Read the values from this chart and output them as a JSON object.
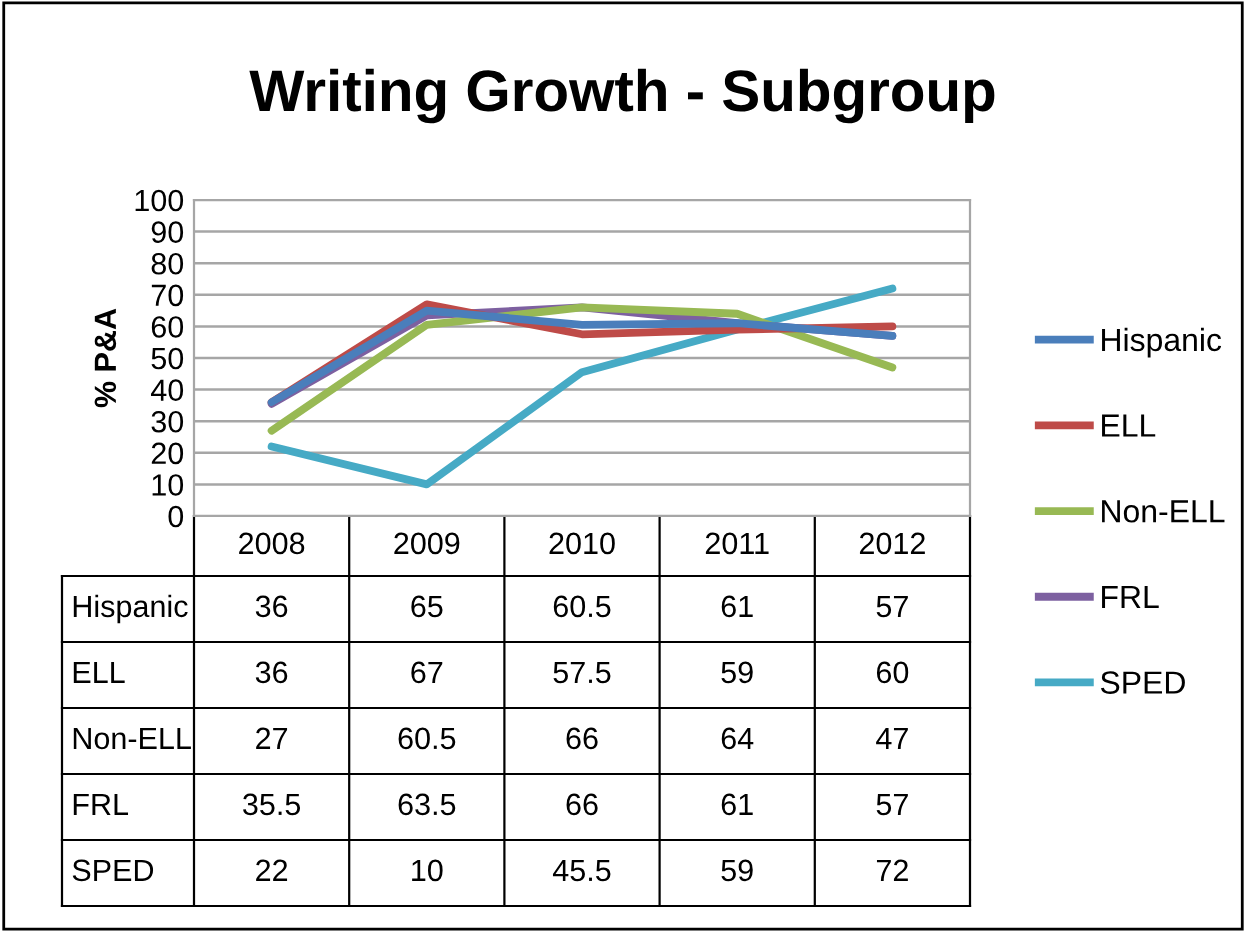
{
  "chart_data": {
    "type": "line",
    "title": "Writing Growth - Subgroup",
    "ylabel": "% P&A",
    "categories": [
      "2008",
      "2009",
      "2010",
      "2011",
      "2012"
    ],
    "series": [
      {
        "name": "Hispanic",
        "color": "#4a7ebb",
        "values": [
          36,
          65,
          60.5,
          61,
          57
        ]
      },
      {
        "name": "ELL",
        "color": "#be4b48",
        "values": [
          36,
          67,
          57.5,
          59,
          60
        ]
      },
      {
        "name": "Non-ELL",
        "color": "#98b954",
        "values": [
          27,
          60.5,
          66,
          64,
          47
        ]
      },
      {
        "name": "FRL",
        "color": "#7d60a0",
        "values": [
          35.5,
          63.5,
          66,
          61,
          57
        ]
      },
      {
        "name": "SPED",
        "color": "#46aac5",
        "values": [
          22,
          10,
          45.5,
          59,
          72
        ]
      }
    ],
    "ylim": [
      0,
      100
    ],
    "yticks": [
      0,
      10,
      20,
      30,
      40,
      50,
      60,
      70,
      80,
      90,
      100
    ],
    "grid": "y",
    "legend": "right",
    "data_labels": true,
    "marker": "none",
    "line_style": "solid"
  }
}
